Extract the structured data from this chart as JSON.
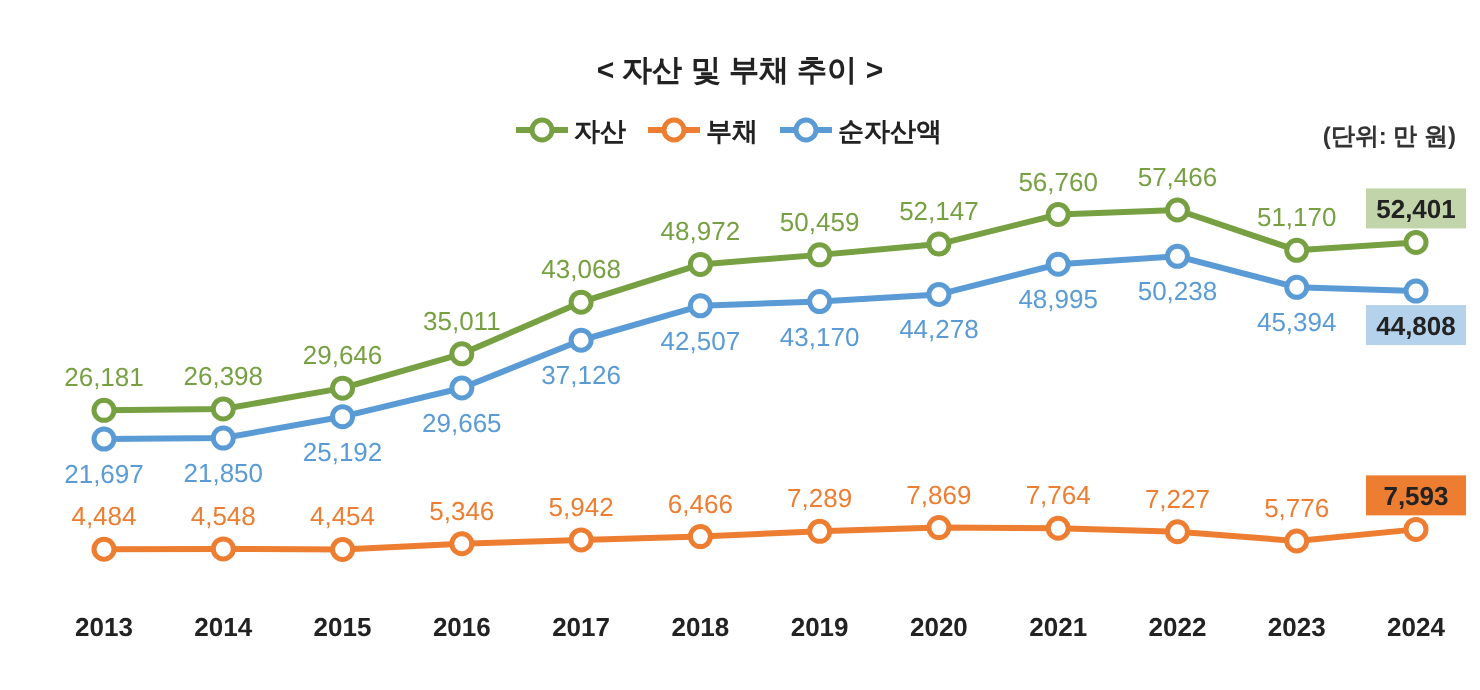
{
  "chart_data": {
    "type": "line",
    "title": "< 자산 및 부채 추이 >",
    "annotations": [
      "(단위: 만 원)"
    ],
    "categories": [
      "2013",
      "2014",
      "2015",
      "2016",
      "2017",
      "2018",
      "2019",
      "2020",
      "2021",
      "2022",
      "2023",
      "2024"
    ],
    "series": [
      {
        "name": "자산",
        "color": "#77a043",
        "values": [
          26181,
          26398,
          29646,
          35011,
          43068,
          48972,
          50459,
          52147,
          56760,
          57466,
          51170,
          52401
        ],
        "value_labels": [
          "26,181",
          "26,398",
          "29,646",
          "35,011",
          "43,068",
          "48,972",
          "50,459",
          "52,147",
          "56,760",
          "57,466",
          "51,170",
          "52,401"
        ]
      },
      {
        "name": "부채",
        "color": "#ed7d31",
        "values": [
          4484,
          4548,
          4454,
          5346,
          5942,
          6466,
          7289,
          7869,
          7764,
          7227,
          5776,
          7593
        ],
        "value_labels": [
          "4,484",
          "4,548",
          "4,454",
          "5,346",
          "5,942",
          "6,466",
          "7,289",
          "7,869",
          "7,764",
          "7,227",
          "5,776",
          "7,593"
        ]
      },
      {
        "name": "순자산액",
        "color": "#5b9bd5",
        "values": [
          21697,
          21850,
          25192,
          29665,
          37126,
          42507,
          43170,
          44278,
          48995,
          50238,
          45394,
          44808
        ],
        "value_labels": [
          "21,697",
          "21,850",
          "25,192",
          "29,665",
          "37,126",
          "42,507",
          "43,170",
          "44,278",
          "48,995",
          "50,238",
          "45,394",
          "44,808"
        ]
      }
    ],
    "marker": "circle",
    "line_style": "solid",
    "legend": "top",
    "grid": false
  }
}
